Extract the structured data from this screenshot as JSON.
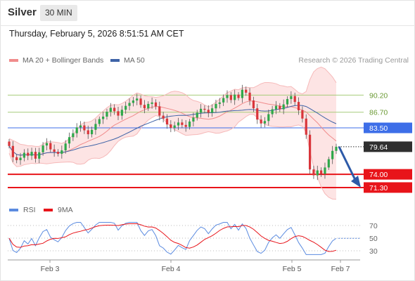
{
  "header": {
    "symbol": "Silver",
    "timeframe": "30 MIN",
    "datetime": "Thursday, February 5, 2026 8:51:51 AM CET"
  },
  "legend": {
    "ma20": {
      "label": "MA 20 + Bollinger Bands",
      "color": "#f08c8c"
    },
    "ma50": {
      "label": "MA 50",
      "color": "#3e63a7"
    }
  },
  "credit": "Research © 2026 Trading Central",
  "colors": {
    "up_candle": "#2ea84a",
    "down_candle": "#d9353a",
    "band_fill": "#fde4e4",
    "resistance": "#a6cc7a",
    "pivot": "#3d6ee8",
    "support": "#e8141a",
    "current": "#2f2f2f",
    "forecast_arrow": "#2d5aa8",
    "rsi": "#5b8be0",
    "rsi_ma": "#e8141a"
  },
  "chart_data": [
    {
      "type": "candlestick",
      "name": "Silver price 30 min",
      "ylim": [
        70.0,
        96.0
      ],
      "x_ticks": [
        "Feb 3",
        "Feb 4",
        "Feb 5",
        "Feb 7"
      ],
      "levels": [
        {
          "value": 90.2,
          "label": "90.20",
          "kind": "resistance"
        },
        {
          "value": 86.7,
          "label": "86.70",
          "kind": "resistance"
        },
        {
          "value": 83.5,
          "label": "83.50",
          "kind": "pivot"
        },
        {
          "value": 79.64,
          "label": "79.64",
          "kind": "current"
        },
        {
          "value": 74.0,
          "label": "74.00",
          "kind": "support"
        },
        {
          "value": 71.3,
          "label": "71.30",
          "kind": "support"
        }
      ],
      "close": [
        79.8,
        77.5,
        76.9,
        77.4,
        78.4,
        77.8,
        78.6,
        77.2,
        78.5,
        79.9,
        80.4,
        79.1,
        78.6,
        78.2,
        78.9,
        80.3,
        81.6,
        82.4,
        83.6,
        84.0,
        83.0,
        82.2,
        83.1,
        84.3,
        85.3,
        85.8,
        86.8,
        87.6,
        86.9,
        86.0,
        87.2,
        88.0,
        88.6,
        89.1,
        89.5,
        88.2,
        87.5,
        88.4,
        88.7,
        87.9,
        86.0,
        85.4,
        84.2,
        83.5,
        84.0,
        84.6,
        84.1,
        83.7,
        84.8,
        85.6,
        86.6,
        87.4,
        87.2,
        86.6,
        87.5,
        88.4,
        88.7,
        89.6,
        90.2,
        89.2,
        90.3,
        89.6,
        91.3,
        90.7,
        89.1,
        87.5,
        85.2,
        84.4,
        84.9,
        86.3,
        87.3,
        88.0,
        87.3,
        88.3,
        89.4,
        90.0,
        88.8,
        87.1,
        85.4,
        82.1,
        75.0,
        73.8,
        74.8,
        74.1,
        75.4,
        77.1,
        78.8,
        79.64
      ]
    },
    {
      "type": "line",
      "name": "RSI",
      "ylim": [
        20,
        80
      ],
      "y_ticks": [
        70,
        50,
        30
      ],
      "legend": [
        "RSI",
        "9MA"
      ]
    }
  ]
}
